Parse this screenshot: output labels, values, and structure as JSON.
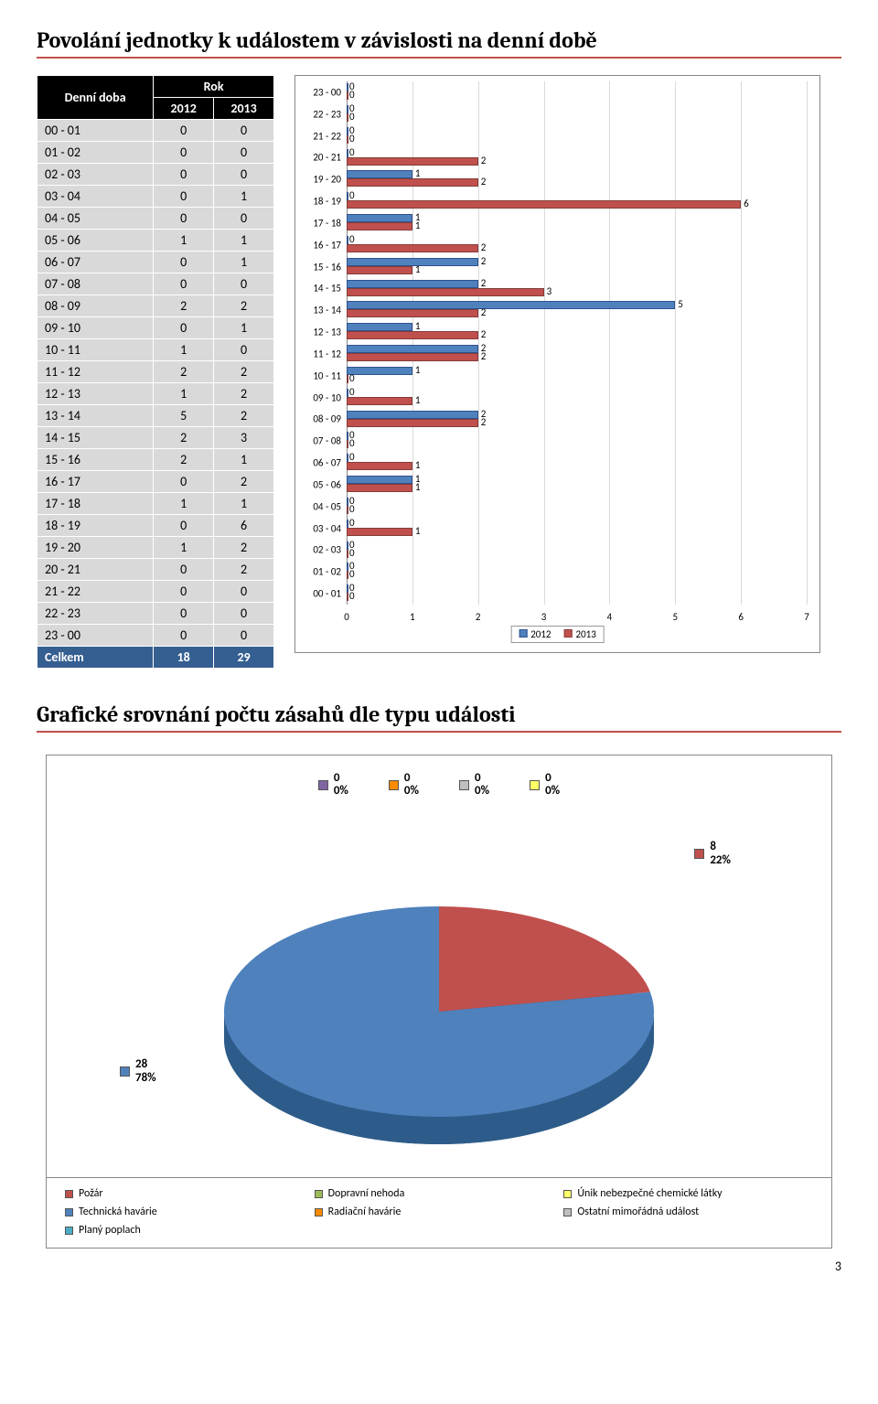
{
  "section1": {
    "title": "Povolání jednotky k událostem v závislosti na denní době",
    "table": {
      "header_rowlabel": "Denní doba",
      "header_group": "Rok",
      "year_a": "2012",
      "year_b": "2013",
      "rows": [
        {
          "label": "00 - 01",
          "a": "0",
          "b": "0"
        },
        {
          "label": "01 - 02",
          "a": "0",
          "b": "0"
        },
        {
          "label": "02 - 03",
          "a": "0",
          "b": "0"
        },
        {
          "label": "03 - 04",
          "a": "0",
          "b": "1"
        },
        {
          "label": "04 - 05",
          "a": "0",
          "b": "0"
        },
        {
          "label": "05 - 06",
          "a": "1",
          "b": "1"
        },
        {
          "label": "06 - 07",
          "a": "0",
          "b": "1"
        },
        {
          "label": "07 - 08",
          "a": "0",
          "b": "0"
        },
        {
          "label": "08 - 09",
          "a": "2",
          "b": "2"
        },
        {
          "label": "09 - 10",
          "a": "0",
          "b": "1"
        },
        {
          "label": "10 - 11",
          "a": "1",
          "b": "0"
        },
        {
          "label": "11 - 12",
          "a": "2",
          "b": "2"
        },
        {
          "label": "12 - 13",
          "a": "1",
          "b": "2"
        },
        {
          "label": "13 - 14",
          "a": "5",
          "b": "2"
        },
        {
          "label": "14 - 15",
          "a": "2",
          "b": "3"
        },
        {
          "label": "15 - 16",
          "a": "2",
          "b": "1"
        },
        {
          "label": "16 - 17",
          "a": "0",
          "b": "2"
        },
        {
          "label": "17 - 18",
          "a": "1",
          "b": "1"
        },
        {
          "label": "18 - 19",
          "a": "0",
          "b": "6"
        },
        {
          "label": "19 - 20",
          "a": "1",
          "b": "2"
        },
        {
          "label": "20 - 21",
          "a": "0",
          "b": "2"
        },
        {
          "label": "21 - 22",
          "a": "0",
          "b": "0"
        },
        {
          "label": "22 - 23",
          "a": "0",
          "b": "0"
        },
        {
          "label": "23 - 00",
          "a": "0",
          "b": "0"
        }
      ],
      "total_label": "Celkem",
      "total_a": "18",
      "total_b": "29"
    },
    "chart": {
      "xmax": 7,
      "xtick_step": 1,
      "categories": [
        "23 - 00",
        "22 - 23",
        "21 - 22",
        "20 - 21",
        "19 - 20",
        "18 - 19",
        "17 - 18",
        "16 - 17",
        "15 - 16",
        "14 - 15",
        "13 - 14",
        "12 - 13",
        "11 - 12",
        "10 - 11",
        "09 - 10",
        "08 - 09",
        "07 - 08",
        "06 - 07",
        "05 - 06",
        "04 - 05",
        "03 - 04",
        "02 - 03",
        "01 - 02",
        "00 - 01"
      ],
      "series_a_name": "2012",
      "series_b_name": "2013",
      "series_a_color": "#4f81bd",
      "series_b_color": "#c0504d",
      "grid_color": "#d9d9d9",
      "bars": [
        {
          "cat": "23 - 00",
          "a": 0,
          "b": 0
        },
        {
          "cat": "22 - 23",
          "a": 0,
          "b": 0
        },
        {
          "cat": "21 - 22",
          "a": 0,
          "b": 0
        },
        {
          "cat": "20 - 21",
          "a": 0,
          "b": 2
        },
        {
          "cat": "19 - 20",
          "a": 1,
          "b": 2
        },
        {
          "cat": "18 - 19",
          "a": 0,
          "b": 6
        },
        {
          "cat": "17 - 18",
          "a": 1,
          "b": 1
        },
        {
          "cat": "16 - 17",
          "a": 0,
          "b": 2
        },
        {
          "cat": "15 - 16",
          "a": 2,
          "b": 1
        },
        {
          "cat": "14 - 15",
          "a": 2,
          "b": 3
        },
        {
          "cat": "13 - 14",
          "a": 5,
          "b": 2
        },
        {
          "cat": "12 - 13",
          "a": 1,
          "b": 2
        },
        {
          "cat": "11 - 12",
          "a": 2,
          "b": 2
        },
        {
          "cat": "10 - 11",
          "a": 1,
          "b": 0
        },
        {
          "cat": "09 - 10",
          "a": 0,
          "b": 1
        },
        {
          "cat": "08 - 09",
          "a": 2,
          "b": 2
        },
        {
          "cat": "07 - 08",
          "a": 0,
          "b": 0
        },
        {
          "cat": "06 - 07",
          "a": 0,
          "b": 1
        },
        {
          "cat": "05 - 06",
          "a": 1,
          "b": 1
        },
        {
          "cat": "04 - 05",
          "a": 0,
          "b": 0
        },
        {
          "cat": "03 - 04",
          "a": 0,
          "b": 1
        },
        {
          "cat": "02 - 03",
          "a": 0,
          "b": 0
        },
        {
          "cat": "01 - 02",
          "a": 0,
          "b": 0
        },
        {
          "cat": "00 - 01",
          "a": 0,
          "b": 0
        }
      ]
    }
  },
  "section2": {
    "title": "Grafické srovnání počtu zásahů dle typu události",
    "summary_items": [
      {
        "color": "purple",
        "value": "0",
        "pct": "0%"
      },
      {
        "color": "orange",
        "value": "0",
        "pct": "0%"
      },
      {
        "color": "gray",
        "value": "0",
        "pct": "0%"
      },
      {
        "color": "yellow",
        "value": "0",
        "pct": "0%"
      }
    ],
    "callout_red": {
      "value": "8",
      "pct": "22%"
    },
    "callout_blue": {
      "value": "28",
      "pct": "78%"
    },
    "pie": {
      "blue_color": "#4f81bd",
      "red_color": "#c0504d",
      "blue_pct": 78,
      "red_pct": 22
    },
    "legend": [
      {
        "color": "red",
        "label": "Požár"
      },
      {
        "color": "green",
        "label": "Dopravní nehoda"
      },
      {
        "color": "yellow",
        "label": "Únik nebezpečné chemické látky"
      },
      {
        "color": "blue",
        "label": "Technická havárie"
      },
      {
        "color": "orange",
        "label": "Radiační havárie"
      },
      {
        "color": "gray",
        "label": "Ostatní mimořádná událost"
      },
      {
        "color": "teal",
        "label": "Planý poplach"
      }
    ]
  },
  "page_number": "3"
}
